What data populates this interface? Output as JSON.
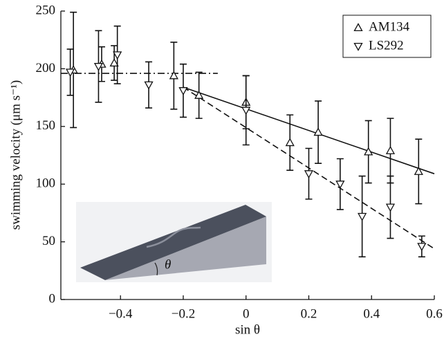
{
  "chart_data": {
    "type": "errorbar-scatter",
    "x_label": "sin θ",
    "y_label": "swimming velocity (μm s⁻¹)",
    "inset_label": "θ",
    "xlim": [
      -0.59,
      0.6
    ],
    "ylim": [
      0,
      250
    ],
    "xticks": [
      {
        "value": -0.4,
        "label": "−0.4"
      },
      {
        "value": -0.2,
        "label": "−0.2"
      },
      0,
      0.2,
      0.4,
      0.6
    ],
    "yticks": [
      0,
      50,
      100,
      150,
      200,
      250
    ],
    "legend": "top-right",
    "series": [
      {
        "name": "AM134",
        "marker": "triangle-up",
        "color": "#111111",
        "x": [
          -0.55,
          -0.46,
          -0.42,
          -0.23,
          -0.15,
          0,
          0.14,
          0.23,
          0.39,
          0.46,
          0.55
        ],
        "values": [
          199,
          204,
          205,
          194,
          177,
          171,
          136,
          145,
          128,
          129,
          111
        ],
        "errors": [
          50,
          15,
          15,
          29,
          20,
          23,
          24,
          27,
          27,
          28,
          28
        ]
      },
      {
        "name": "LS292",
        "marker": "triangle-down",
        "color": "#111111",
        "x": [
          -0.56,
          -0.47,
          -0.41,
          -0.31,
          -0.2,
          0,
          0.2,
          0.3,
          0.37,
          0.46,
          0.56
        ],
        "values": [
          197,
          202,
          212,
          186,
          181,
          164,
          109,
          100,
          72,
          80,
          46
        ],
        "errors": [
          20,
          31,
          25,
          20,
          23,
          30,
          22,
          22,
          35,
          27,
          9
        ]
      }
    ],
    "lines": [
      {
        "style": "dashdot",
        "x": [
          -0.59,
          -0.09
        ],
        "y": [
          196,
          196
        ]
      },
      {
        "style": "solid",
        "x": [
          -0.2,
          0.6
        ],
        "y": [
          184,
          109
        ]
      },
      {
        "style": "dashed",
        "x": [
          -0.2,
          0.6
        ],
        "y": [
          184,
          44
        ]
      }
    ]
  }
}
